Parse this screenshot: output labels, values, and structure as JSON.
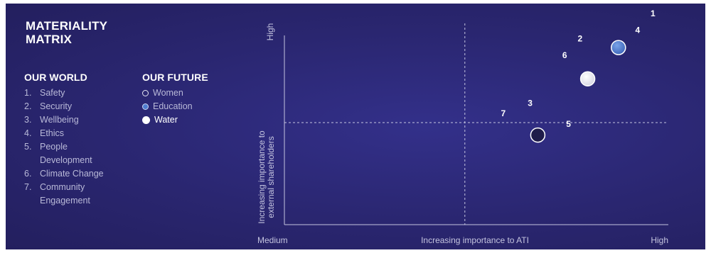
{
  "legend": {
    "title_line1": "MATERIALITY",
    "title_line2": "MATRIX",
    "our_world_heading": "OUR WORLD",
    "our_future_heading": "OUR FUTURE",
    "our_world_items": [
      {
        "num": "1.",
        "label": "Safety"
      },
      {
        "num": "2.",
        "label": "Security"
      },
      {
        "num": "3.",
        "label": "Wellbeing"
      },
      {
        "num": "4.",
        "label": "Ethics"
      },
      {
        "num": "5.",
        "label": "People Development"
      },
      {
        "num": "6.",
        "label": "Climate Change"
      },
      {
        "num": "7.",
        "label": "Community Engagement"
      }
    ],
    "our_future_items": [
      {
        "key": "women",
        "label": "Women"
      },
      {
        "key": "education",
        "label": "Education"
      },
      {
        "key": "water",
        "label": "Water"
      }
    ]
  },
  "colors": {
    "background": "#2a2670",
    "women": "#1f1c4a",
    "education": "#4f7dd0",
    "water": "#f2f2f7",
    "axis": "#c4c4df",
    "text": "#ffffff"
  },
  "chart_data": {
    "type": "scatter",
    "xlabel": "Increasing importance to ATI",
    "ylabel": "Increasing importance to external shareholders",
    "x_tick_labels": [
      "Medium",
      "High"
    ],
    "y_tick_labels": [
      "High"
    ],
    "xlim": [
      0,
      10
    ],
    "ylim": [
      0,
      10
    ],
    "quadrant_dividers": {
      "x": 4.7,
      "y": 4.9
    },
    "numbered_issues": [
      {
        "label": "1",
        "x": 9.6,
        "y": 10.0
      },
      {
        "label": "2",
        "x": 7.7,
        "y": 8.8
      },
      {
        "label": "3",
        "x": 6.4,
        "y": 5.7
      },
      {
        "label": "4",
        "x": 9.2,
        "y": 9.2
      },
      {
        "label": "5",
        "x": 7.4,
        "y": 4.7
      },
      {
        "label": "6",
        "x": 7.3,
        "y": 8.0
      },
      {
        "label": "7",
        "x": 5.7,
        "y": 5.2
      }
    ],
    "bubbles": [
      {
        "category": "women",
        "x": 6.6,
        "y": 4.3
      },
      {
        "category": "education",
        "x": 8.7,
        "y": 8.5
      },
      {
        "category": "water",
        "x": 7.9,
        "y": 7.0
      }
    ]
  }
}
